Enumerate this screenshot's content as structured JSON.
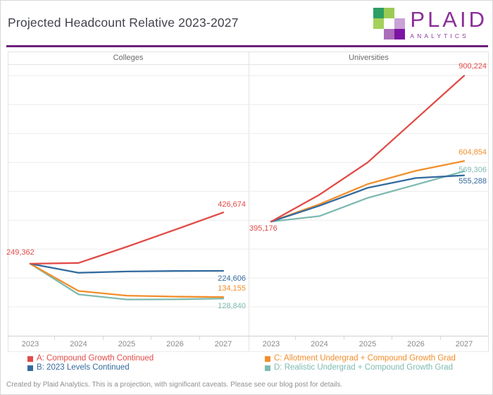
{
  "title": "Projected Headcount Relative 2023-2027",
  "logo": {
    "name": "PLAID",
    "tagline": "ANALYTICS"
  },
  "footer": "Created by Plaid Analytics. This is a projection, with significant caveats. Please see our blog post for details.",
  "colors": {
    "accent_rule_purple": "#6b1f7a",
    "brand_purple": "#8b2e99",
    "series_red": "#e14b47",
    "series_blue": "#336a9e",
    "series_orange": "#f28e2b",
    "series_teal": "#7ebab1",
    "logo_squares": [
      {
        "r": 0,
        "c": 0,
        "hex": "#2d9e64"
      },
      {
        "r": 0,
        "c": 1,
        "hex": "#9bcb53"
      },
      {
        "r": 1,
        "c": 0,
        "hex": "#a5d05a"
      },
      {
        "r": 1,
        "c": 1,
        "hex": "#ffffff"
      },
      {
        "r": 1,
        "c": 2,
        "hex": "#c9a2d8"
      },
      {
        "r": 2,
        "c": 1,
        "hex": "#ab6cba"
      },
      {
        "r": 2,
        "c": 2,
        "hex": "#7d14a4"
      }
    ]
  },
  "chart_data": {
    "type": "line",
    "x_categories": [
      "2023",
      "2024",
      "2025",
      "2026",
      "2027"
    ],
    "ylim": [
      0,
      940000
    ],
    "gridline_step": 100000,
    "grid": "horizontal",
    "legend_position": "bottom",
    "panels": [
      {
        "title": "Colleges",
        "start_label": "249,362",
        "series": [
          {
            "key": "A",
            "name": "A: Compound Growth Continued",
            "color": "#e14b47",
            "values": [
              249362,
              252000,
              308000,
              367000,
              426674
            ],
            "end_label": "426,674"
          },
          {
            "key": "B",
            "name": "B: 2023 Levels Continued",
            "color": "#336a9e",
            "values": [
              249362,
              218000,
              222500,
              224100,
              224606
            ],
            "end_label": "224,606"
          },
          {
            "key": "C",
            "name": "C: Allotment Undergrad + Compound Growth Grad",
            "color": "#f28e2b",
            "values": [
              249362,
              155000,
              139000,
              135500,
              134155
            ],
            "end_label": "134,155"
          },
          {
            "key": "D",
            "name": "D: Realistic Undergrad + Compound Growth Grad",
            "color": "#7ebab1",
            "values": [
              249362,
              143000,
              125500,
              126000,
              128840
            ],
            "end_label": "128,840"
          }
        ]
      },
      {
        "title": "Universities",
        "start_label": "395,176",
        "series": [
          {
            "key": "A",
            "name": "A: Compound Growth Continued",
            "color": "#e14b47",
            "values": [
              395176,
              488000,
              600000,
              750000,
              900224
            ],
            "end_label": "900,224"
          },
          {
            "key": "B",
            "name": "B: 2023 Levels Continued",
            "color": "#336a9e",
            "values": [
              395176,
              450000,
              512000,
              546000,
              555288
            ],
            "end_label": "555,288"
          },
          {
            "key": "C",
            "name": "C: Allotment Undergrad + Compound Growth Grad",
            "color": "#f28e2b",
            "values": [
              395176,
              455000,
              525000,
              571000,
              604854
            ],
            "end_label": "604,854"
          },
          {
            "key": "D",
            "name": "D: Realistic Undergrad + Compound Growth Grad",
            "color": "#7ebab1",
            "values": [
              395176,
              414000,
              477000,
              523000,
              569306
            ],
            "end_label": "569,306"
          }
        ]
      }
    ]
  },
  "legend": {
    "items": [
      {
        "label": "A: Compound Growth Continued",
        "color": "#e14b47"
      },
      {
        "label": "B: 2023 Levels Continued",
        "color": "#336a9e"
      },
      {
        "label": "C: Allotment Undergrad + Compound Growth Grad",
        "color": "#f28e2b"
      },
      {
        "label": "D: Realistic Undergrad + Compound Growth Grad",
        "color": "#7ebab1"
      }
    ]
  }
}
